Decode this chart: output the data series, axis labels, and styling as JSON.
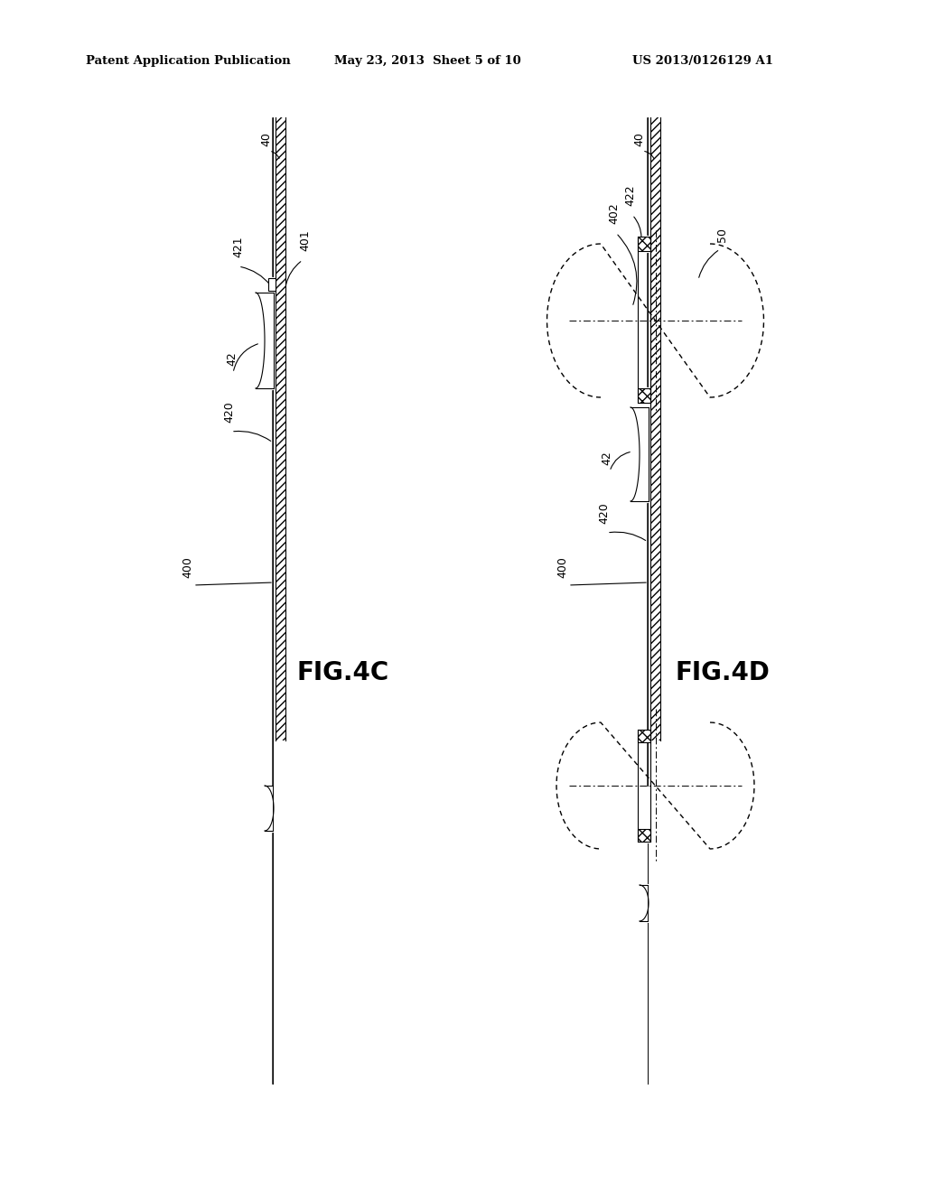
{
  "bg_color": "#ffffff",
  "header_text": "Patent Application Publication",
  "header_date": "May 23, 2013  Sheet 5 of 10",
  "header_patent": "US 2013/0126129 A1",
  "fig4c_label": "FIG.4C",
  "fig4d_label": "FIG.4D",
  "line_color": "#000000",
  "hatch_color": "#000000"
}
